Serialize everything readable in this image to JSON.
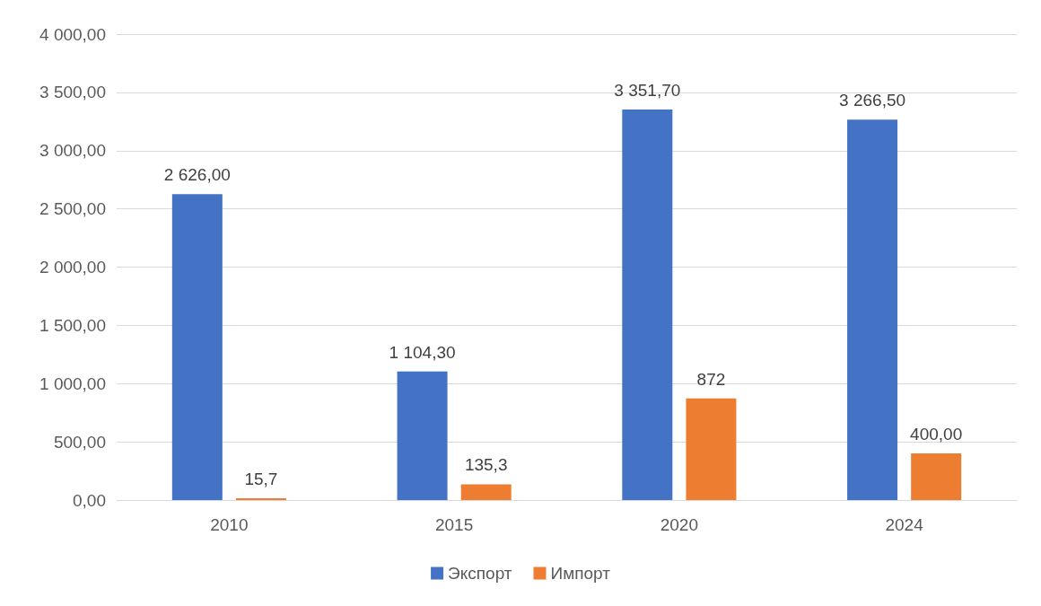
{
  "chart_data": {
    "type": "bar",
    "categories": [
      "2010",
      "2015",
      "2020",
      "2024"
    ],
    "series": [
      {
        "name": "Экспорт",
        "color": "#4472c4",
        "values": [
          2626.0,
          1104.3,
          3351.7,
          3266.5
        ],
        "value_labels": [
          "2 626,00",
          "1 104,30",
          "3 351,70",
          "3 266,50"
        ]
      },
      {
        "name": "Импорт",
        "color": "#ed7d31",
        "values": [
          15.7,
          135.3,
          872,
          400.0
        ],
        "value_labels": [
          "15,7",
          "135,3",
          "872",
          "400,00"
        ]
      }
    ],
    "ylim": [
      0,
      4000
    ],
    "yticks": [
      {
        "value": 0,
        "label": "0,00"
      },
      {
        "value": 500,
        "label": "500,00"
      },
      {
        "value": 1000,
        "label": "1 000,00"
      },
      {
        "value": 1500,
        "label": "1 500,00"
      },
      {
        "value": 2000,
        "label": "2 000,00"
      },
      {
        "value": 2500,
        "label": "2 500,00"
      },
      {
        "value": 3000,
        "label": "3 000,00"
      },
      {
        "value": 3500,
        "label": "3 500,00"
      },
      {
        "value": 4000,
        "label": "4 000,00"
      }
    ],
    "grid": "y",
    "legend": "bottom"
  }
}
